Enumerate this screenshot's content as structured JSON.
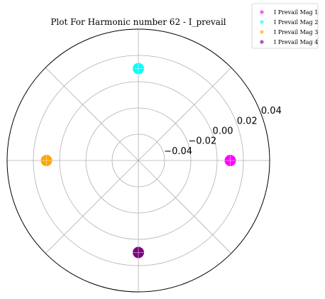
{
  "chart_data": {
    "type": "scatter",
    "projection": "polar",
    "title": "Plot For Harmonic number 62 - I_prevail",
    "radial_ticks": [
      -0.04,
      -0.02,
      0.0,
      0.02,
      0.04
    ],
    "radial_tick_labels": [
      "−0.04",
      "−0.02",
      "0.00",
      "0.02",
      "0.04"
    ],
    "rlim": [
      -0.06,
      0.04
    ],
    "angular_gridlines_deg": [
      0,
      45,
      90,
      135,
      180,
      225,
      270,
      315
    ],
    "grid": true,
    "legend_position": "top-right",
    "series": [
      {
        "name": "I Prevail Mag 1",
        "color": "#ff00ff",
        "points": [
          {
            "theta_deg": 0,
            "r": 0.01
          }
        ]
      },
      {
        "name": "I Prevail Mag 2",
        "color": "#00ffff",
        "points": [
          {
            "theta_deg": 90,
            "r": 0.01
          }
        ]
      },
      {
        "name": "I Prevail Mag 3",
        "color": "#ffa500",
        "points": [
          {
            "theta_deg": 180,
            "r": 0.01
          }
        ]
      },
      {
        "name": "I Prevail Mag 4",
        "color": "#800080",
        "points": [
          {
            "theta_deg": 270,
            "r": 0.01
          }
        ]
      }
    ]
  }
}
